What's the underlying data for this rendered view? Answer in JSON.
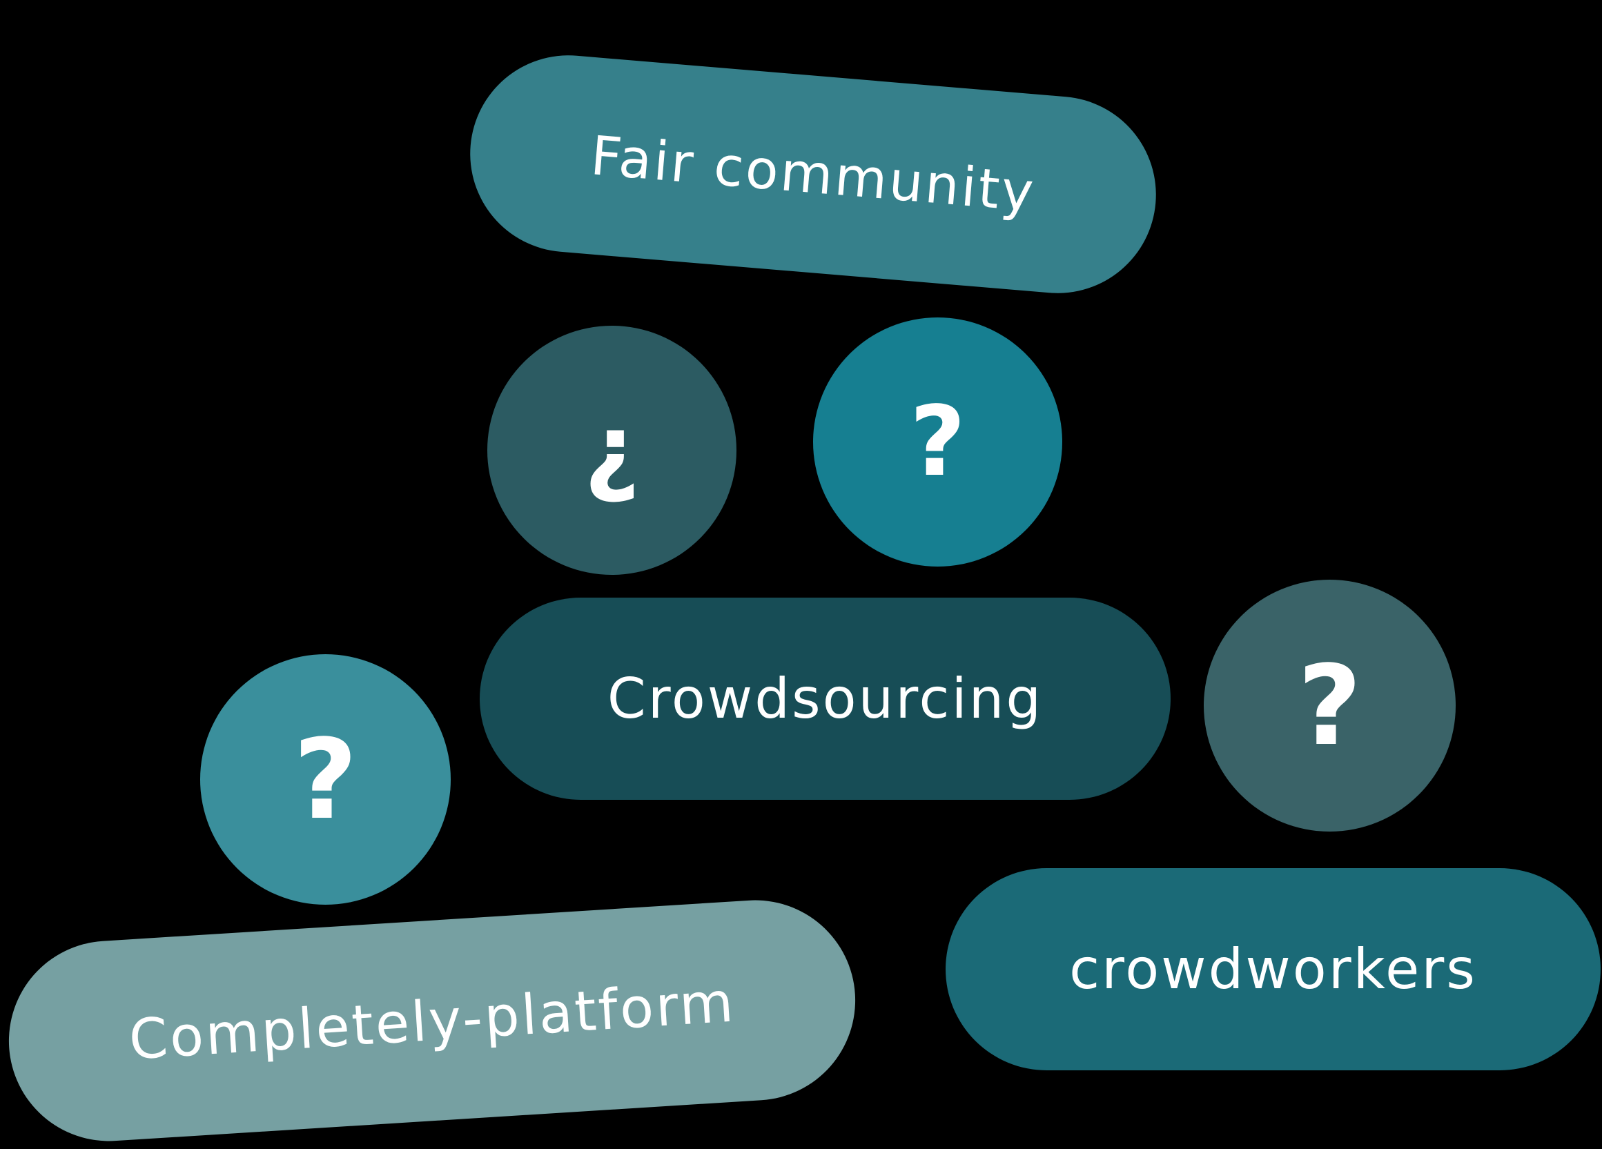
{
  "labels": {
    "fair_community": "Fair community",
    "crowdsourcing": "Crowdsourcing",
    "completely_platform": "Completely-platform",
    "crowdworkers": "crowdworkers"
  },
  "bubbles": [
    {
      "glyph": "¿",
      "color": "#2c5b62"
    },
    {
      "glyph": "?",
      "color": "#167f91"
    },
    {
      "glyph": "?",
      "color": "#3a6368"
    },
    {
      "glyph": "?",
      "color": "#3a8f9c"
    }
  ],
  "colors": {
    "background": "#000000",
    "fair_community": "#36808b",
    "crowdsourcing": "#174d56",
    "completely_platform": "#76a0a2",
    "crowdworkers": "#1b6a77",
    "text": "#ffffff"
  }
}
